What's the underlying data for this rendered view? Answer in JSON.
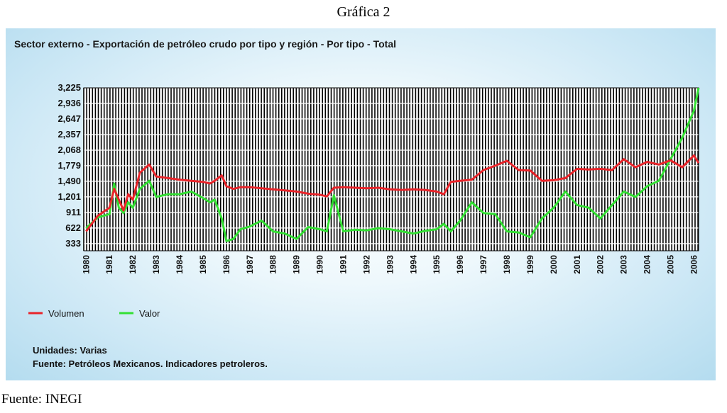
{
  "header": {
    "title": "Gráfica 2"
  },
  "chart_data": {
    "type": "line",
    "title": "Sector externo - Exportación de petróleo crudo por tipo y región - Por tipo - Total",
    "xlabel": "",
    "ylabel": "",
    "yticks": [
      "3,225",
      "2,936",
      "2,647",
      "2,357",
      "2,068",
      "1,779",
      "1,490",
      "1,201",
      "911",
      "622",
      "333"
    ],
    "ytick_values": [
      3225,
      2936,
      2647,
      2357,
      2068,
      1779,
      1490,
      1201,
      911,
      622,
      333
    ],
    "ylim": [
      200,
      3225
    ],
    "xlim": [
      1979.9,
      2006.2
    ],
    "xticks": [
      "1980",
      "1981",
      "1982",
      "1983",
      "1984",
      "1985",
      "1986",
      "1987",
      "1988",
      "1989",
      "1990",
      "1991",
      "1992",
      "1993",
      "1994",
      "1995",
      "1996",
      "1997",
      "1998",
      "1999",
      "2000",
      "2001",
      "2002",
      "2003",
      "2004",
      "2005",
      "2006"
    ],
    "grid": true,
    "legend_position": "bottom-left",
    "series": [
      {
        "name": "Volumen",
        "color": "#e8242a",
        "x": [
          1980.0,
          1980.5,
          1981.0,
          1981.2,
          1981.4,
          1981.6,
          1981.8,
          1982.0,
          1982.3,
          1982.7,
          1983.0,
          1983.5,
          1984.0,
          1984.5,
          1985.0,
          1985.3,
          1985.5,
          1985.8,
          1986.0,
          1986.3,
          1986.6,
          1987.0,
          1987.5,
          1988.0,
          1988.5,
          1989.0,
          1989.5,
          1990.0,
          1990.3,
          1990.6,
          1991.0,
          1991.5,
          1992.0,
          1992.5,
          1993.0,
          1993.5,
          1994.0,
          1994.5,
          1995.0,
          1995.3,
          1995.6,
          1996.0,
          1996.5,
          1997.0,
          1997.5,
          1998.0,
          1998.5,
          1999.0,
          1999.5,
          2000.0,
          2000.5,
          2001.0,
          2001.5,
          2002.0,
          2002.5,
          2003.0,
          2003.5,
          2004.0,
          2004.5,
          2005.0,
          2005.5,
          2006.0,
          2006.2
        ],
        "values": [
          560,
          850,
          1000,
          1350,
          1150,
          950,
          1250,
          1150,
          1650,
          1800,
          1580,
          1550,
          1520,
          1500,
          1480,
          1450,
          1500,
          1600,
          1400,
          1350,
          1380,
          1380,
          1360,
          1340,
          1320,
          1300,
          1260,
          1240,
          1210,
          1370,
          1380,
          1370,
          1360,
          1370,
          1340,
          1330,
          1340,
          1330,
          1300,
          1250,
          1480,
          1500,
          1520,
          1700,
          1780,
          1870,
          1700,
          1690,
          1500,
          1510,
          1550,
          1720,
          1710,
          1720,
          1700,
          1900,
          1750,
          1850,
          1800,
          1880,
          1750,
          1970,
          1830
        ]
      },
      {
        "name": "Valor",
        "color": "#33e033",
        "x": [
          1980.0,
          1980.5,
          1981.0,
          1981.2,
          1981.4,
          1981.6,
          1981.8,
          1982.0,
          1982.3,
          1982.7,
          1983.0,
          1983.5,
          1984.0,
          1984.5,
          1985.0,
          1985.3,
          1985.5,
          1985.8,
          1986.0,
          1986.3,
          1986.6,
          1987.0,
          1987.5,
          1988.0,
          1988.5,
          1989.0,
          1989.5,
          1990.0,
          1990.3,
          1990.6,
          1991.0,
          1991.5,
          1992.0,
          1992.5,
          1993.0,
          1993.5,
          1994.0,
          1994.5,
          1995.0,
          1995.3,
          1995.6,
          1996.0,
          1996.5,
          1997.0,
          1997.5,
          1998.0,
          1998.5,
          1999.0,
          1999.5,
          2000.0,
          2000.5,
          2001.0,
          2001.5,
          2002.0,
          2002.5,
          2003.0,
          2003.5,
          2004.0,
          2004.5,
          2005.0,
          2005.5,
          2006.0,
          2006.2
        ],
        "values": [
          620,
          820,
          880,
          1450,
          1000,
          900,
          1100,
          1000,
          1350,
          1500,
          1200,
          1250,
          1250,
          1300,
          1180,
          1100,
          1150,
          800,
          380,
          420,
          600,
          650,
          760,
          560,
          520,
          420,
          640,
          600,
          560,
          1230,
          560,
          590,
          580,
          620,
          600,
          560,
          520,
          570,
          600,
          700,
          560,
          760,
          1100,
          900,
          880,
          560,
          540,
          450,
          800,
          1000,
          1300,
          1050,
          1000,
          800,
          1050,
          1300,
          1200,
          1400,
          1500,
          1900,
          2300,
          2800,
          3225
        ]
      }
    ]
  },
  "legend": {
    "volumen": "Volumen",
    "valor": "Valor"
  },
  "notes": {
    "units": "Unidades: Varias",
    "source": "Fuente: Petróleos Mexicanos. Indicadores petroleros."
  },
  "footer": {
    "source": "Fuente: INEGI"
  }
}
